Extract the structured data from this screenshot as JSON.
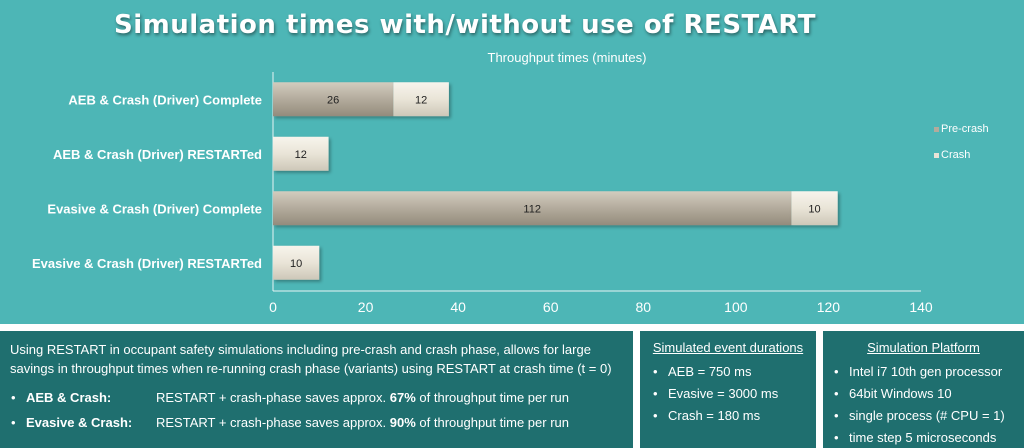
{
  "chart_data": {
    "type": "bar",
    "orientation": "horizontal",
    "stacked": true,
    "title": "Simulation times with/without use of RESTART",
    "xlabel": "Throughput times (minutes)",
    "xlim": [
      0,
      140
    ],
    "xticks": [
      0,
      20,
      40,
      60,
      80,
      100,
      120,
      140
    ],
    "categories": [
      "AEB & Crash (Driver) Complete",
      "AEB & Crash (Driver) RESTARTed",
      "Evasive & Crash (Driver) Complete",
      "Evasive & Crash (Driver) RESTARTed"
    ],
    "series": [
      {
        "name": "Pre-crash",
        "values": [
          26,
          0,
          112,
          0
        ],
        "labels": [
          "26",
          "",
          "112",
          ""
        ],
        "color": "#b3ab9c"
      },
      {
        "name": "Crash",
        "values": [
          12,
          12,
          10,
          10
        ],
        "labels": [
          "12",
          "12",
          "10",
          "10"
        ],
        "color": "#e9e4d7"
      }
    ],
    "legend": "right",
    "grid": false
  },
  "panel_main": {
    "intro": "Using RESTART in occupant safety simulations including pre-crash and crash phase, allows for large savings in throughput times when re-running crash phase (variants) using RESTART at crash time (t = 0)",
    "bullets": [
      {
        "label": "AEB & Crash:",
        "pre": "RESTART + crash-phase saves approx. ",
        "bold": "67%",
        "post": " of throughput time per run"
      },
      {
        "label": "Evasive & Crash:",
        "pre": "RESTART + crash-phase saves approx. ",
        "bold": "90%",
        "post": " of throughput time per run"
      }
    ]
  },
  "panel_durations": {
    "title": "Simulated event durations",
    "items": [
      "AEB  = 750 ms",
      "Evasive = 3000 ms",
      "Crash = 180 ms"
    ]
  },
  "panel_platform": {
    "title": "Simulation Platform",
    "items": [
      "Intel i7 10th gen processor",
      "64bit Windows 10",
      "single process (# CPU = 1)",
      "time step 5 microseconds"
    ]
  }
}
